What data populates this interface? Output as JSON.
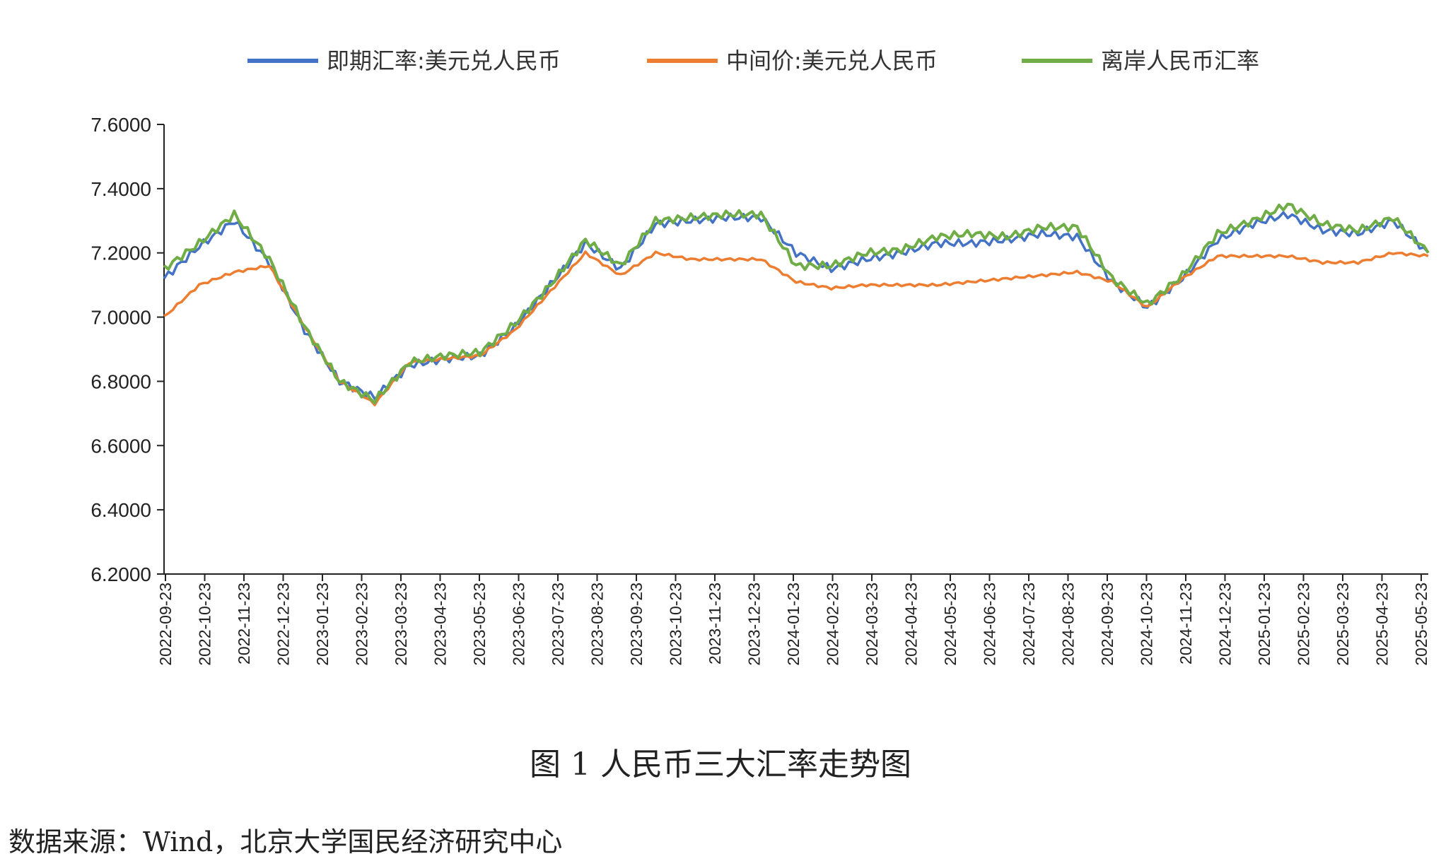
{
  "caption": "图 1 人民币三大汇率走势图",
  "source": "数据来源：Wind，北京大学国民经济研究中心",
  "chart_data": {
    "type": "line",
    "title": "图 1 人民币三大汇率走势图",
    "ylim": [
      6.2,
      7.6
    ],
    "yticks": [
      "7.6000",
      "7.4000",
      "7.2000",
      "7.0000",
      "6.8000",
      "6.6000",
      "6.4000",
      "6.2000"
    ],
    "xticks": [
      "2022-09-23",
      "2022-10-23",
      "2022-11-23",
      "2022-12-23",
      "2023-01-23",
      "2023-02-23",
      "2023-03-23",
      "2023-04-23",
      "2023-05-23",
      "2023-06-23",
      "2023-07-23",
      "2023-08-23",
      "2023-09-23",
      "2023-10-23",
      "2023-11-23",
      "2023-12-23",
      "2024-01-23",
      "2024-02-23",
      "2024-03-23",
      "2024-04-23",
      "2024-05-23",
      "2024-06-23",
      "2024-07-23",
      "2024-08-23",
      "2024-09-23",
      "2024-10-23",
      "2024-11-23",
      "2024-12-23",
      "2025-01-23",
      "2025-02-23",
      "2025-03-23",
      "2025-04-23",
      "2025-05-23"
    ],
    "legend_position": "top",
    "grid": false,
    "series": [
      {
        "name": "即期汇率:美元兑人民币",
        "color": "#4472C4",
        "values": [
          7.12,
          7.22,
          7.3,
          7.17,
          6.96,
          6.8,
          6.75,
          6.85,
          6.87,
          6.88,
          6.97,
          7.1,
          7.23,
          7.15,
          7.29,
          7.3,
          7.31,
          7.31,
          7.2,
          7.15,
          7.18,
          7.2,
          7.23,
          7.23,
          7.24,
          7.26,
          7.25,
          7.11,
          7.03,
          7.12,
          7.24,
          7.29,
          7.32,
          7.27,
          7.26,
          7.3,
          7.2
        ]
      },
      {
        "name": "中间价:美元兑人民币",
        "color": "#ED7D31",
        "values": [
          7.0,
          7.1,
          7.14,
          7.16,
          6.97,
          6.8,
          6.73,
          6.86,
          6.87,
          6.88,
          6.96,
          7.08,
          7.2,
          7.13,
          7.2,
          7.18,
          7.18,
          7.18,
          7.11,
          7.09,
          7.1,
          7.1,
          7.1,
          7.11,
          7.12,
          7.13,
          7.14,
          7.11,
          7.03,
          7.12,
          7.19,
          7.19,
          7.19,
          7.17,
          7.17,
          7.2,
          7.19
        ]
      },
      {
        "name": "离岸人民币汇率",
        "color": "#70AD47",
        "values": [
          7.15,
          7.23,
          7.32,
          7.18,
          6.97,
          6.8,
          6.74,
          6.86,
          6.88,
          6.89,
          6.98,
          7.1,
          7.24,
          7.16,
          7.3,
          7.31,
          7.32,
          7.32,
          7.16,
          7.16,
          7.2,
          7.21,
          7.25,
          7.26,
          7.25,
          7.28,
          7.28,
          7.12,
          7.04,
          7.13,
          7.26,
          7.3,
          7.35,
          7.29,
          7.27,
          7.31,
          7.2
        ]
      }
    ]
  }
}
